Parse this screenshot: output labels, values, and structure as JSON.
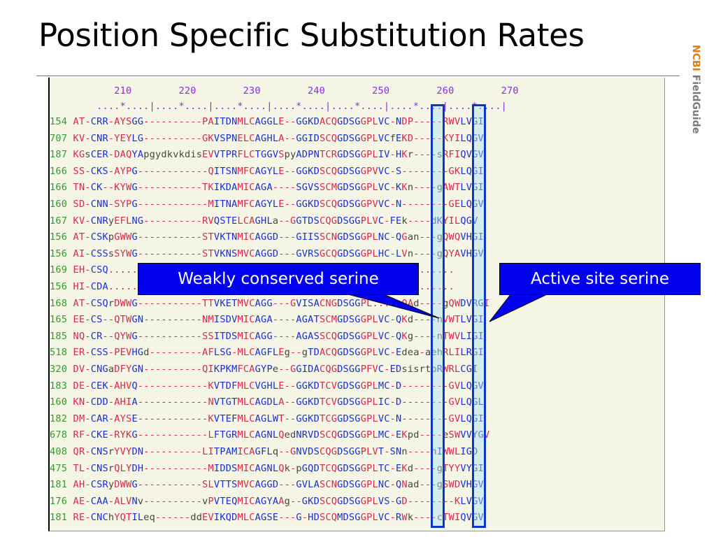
{
  "slide": {
    "title": "Position Specific Substitution Rates",
    "logo_brand": "NCBI",
    "logo_product": "FieldGuide"
  },
  "alignment": {
    "ruler_numbers": "           210        220        230        240        250        260        270",
    "ruler_ticks": "        ....*....|....*....|....*....|....*....|....*....|....*....|....*....|",
    "rows": [
      {
        "id": "154",
        "seq": "AT-CRR-AYSGG----------PAITDNMLCAGGLE--GGKDACQGDSGGPLVC-NDP-----RWVLVGI"
      },
      {
        "id": "707",
        "seq": "KV-CNR-YEYLG----------GKVSPNELCAGHLA--GGIDSCQGDSGGPLVCfEKD-----KYILQGV"
      },
      {
        "id": "187",
        "seq": "KGsCER-DAQYApgydkvkdisEVVTPRFLCTGGVSpyADPNTCRGDSGGPLIV-HKr----sRFIQVGV"
      },
      {
        "id": "166",
        "seq": "SS-CKS-AYPG------------QITSNMFCAGYLE--GGKDSCQGDSGGPVVC-S--------GKLQGI"
      },
      {
        "id": "166",
        "seq": "TN-CK--KYWG-----------TKIKDAMICAGA----SGVSSCMGDSGGPLVC-KKn----gAWTLVGI"
      },
      {
        "id": "160",
        "seq": "SD-CNN-SYPG------------MITNAMFCAGYLE--GGKDSCQGDSGGPVVC-N--------GELQGV"
      },
      {
        "id": "167",
        "seq": "KV-CNRyEFLNG----------RVQSTELCAGHLa--GGTDSCQGDSGGPLVC-FEk----dKYILQGV"
      },
      {
        "id": "156",
        "seq": "AT-CSKpGWWG-----------STVKTNMICAGGD---GIISSCNGDSGGPLNC-QGan---gQWQVHGI"
      },
      {
        "id": "156",
        "seq": "AI-CSSsSYWG-----------STVKNSMVCAGGD---GVRSGCQGDSGGPLHC-LVn----gQYAVHGV"
      },
      {
        "id": "169",
        "seq": "EH-CSQ......................................RSGCDGDSGGP.........."
      },
      {
        "id": "156",
        "seq": "HI-CDA......................................RDSCQGDSGGP.........."
      },
      {
        "id": "168",
        "seq": "AT-CSQrDWWG-----------TTVKETMVCAGG---GVISACNGDSGGPL.....QAd----gQWDVRGI"
      },
      {
        "id": "165",
        "seq": "EE-CS--QTWGN----------NMISDVMICAGA----AGATSCMGDSGGPLVC-QKd----nVWTLVGI"
      },
      {
        "id": "185",
        "seq": "NQ-CR--QYWG-----------SSITDSMICAGG----AGASSCQGDSGGPLVC-QKg----nTWVLIGI"
      },
      {
        "id": "518",
        "seq": "ER-CSS-PEVHGd---------AFLSG-MLCAGFLEg--gTDACQGDSGGPLVC-Edea-aehRLILRGI"
      },
      {
        "id": "320",
        "seq": "DV-CNGaDFYGN----------QIKPKMFCAGYPe--GGIDACQGDSGGPFVC-EDsisrtpRWRLCGI"
      },
      {
        "id": "183",
        "seq": "DE-CEK-AHVQ------------KVTDFMLCVGHLE--GGKDTCVGDSGGPLMC-D--------GVLQGV"
      },
      {
        "id": "160",
        "seq": "KN-CDD-AHIA------------NVTGTMLCAGDLA--GGKDTCVGDSGGPLIC-D--------GVLQGL"
      },
      {
        "id": "182",
        "seq": "DM-CAR-AYSE------------KVTEFMLCAGLWT--GGKDTCGGDSGGPLVC-N--------GVLQGI"
      },
      {
        "id": "678",
        "seq": "RF-CKE-RYKG------------LFTGRMLCAGNLQedNRVDSCQGDSGGPLMC-EKpd----eSWVVYGV"
      },
      {
        "id": "408",
        "seq": "QR-CNSrYVYDN----------LITPAMICAGFLq--GNVDSCQGDSGGPLVT-SNn----nIWWLIGD"
      },
      {
        "id": "475",
        "seq": "TL-CNSrQLYDH-----------MIDDSMICAGNLQk-pGQDTCQGDSGGPLTC-EKd----gTYYVYGI"
      },
      {
        "id": "181",
        "seq": "AH-CSRyDWWG-----------SLVTTSMVCAGGD---GVLASCNGDSGGPLNC-QNad---gSWDVHGV"
      },
      {
        "id": "176",
        "seq": "AE-CAA-ALVNv----------vPVTEQMICAGYAAg--GKDSCQGDSGGPLVS-GD--------KLVGV"
      },
      {
        "id": "181",
        "seq": "RE-CNChYQTILeq------ddEVIKQDMLCAGSE---G-HDSCQMDSGGPLVC-RWk----cTWIQVGV"
      }
    ]
  },
  "callouts": {
    "weak": "Weakly conserved serine",
    "active": "Active site serine"
  },
  "colors": {
    "callout_bg": "#0000ee",
    "residue_red": "#d8284a",
    "residue_blue": "#1a2fd0",
    "row_number_green": "#2e9a2e",
    "panel_bg": "#f6f6e6"
  }
}
